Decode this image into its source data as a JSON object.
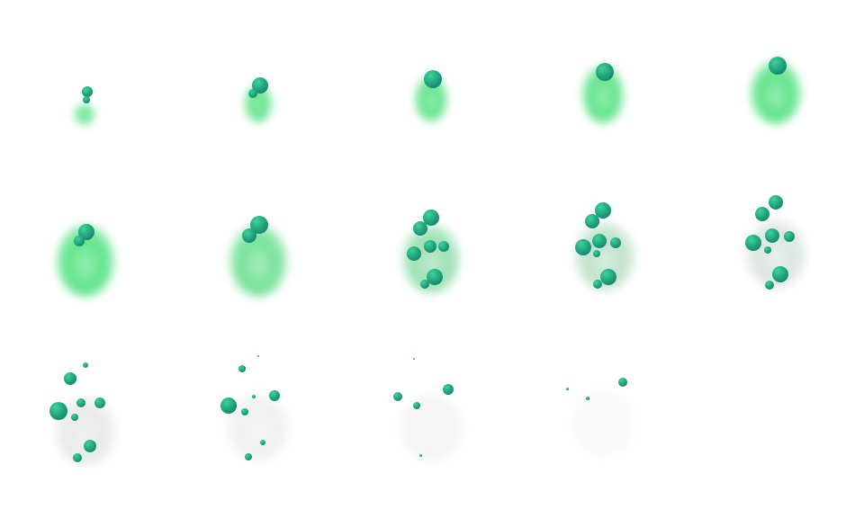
{
  "sprite_sheet": {
    "frame_count": 14,
    "columns": 5,
    "rows": 3,
    "colors": {
      "smoke_green": "#4be07a",
      "smoke_gray": "#bfc4c2",
      "ball_light": "#3fd39a",
      "ball_dark": "#0f6f63"
    }
  }
}
